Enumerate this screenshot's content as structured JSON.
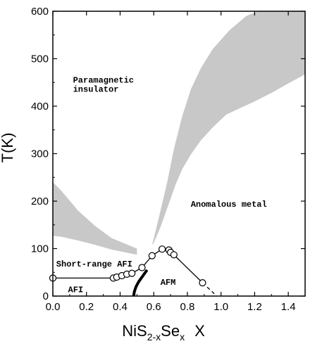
{
  "chart_data": {
    "type": "line",
    "title": "",
    "xlabel": "X",
    "xlabel_compound": {
      "base": "NiS",
      "sub1": "2-x",
      "mid": "Se",
      "sub2": "x"
    },
    "ylabel": "T(K)",
    "xlim": [
      0,
      1.5
    ],
    "ylim": [
      0,
      600
    ],
    "x_ticks": [
      0.0,
      0.2,
      0.4,
      0.6,
      0.8,
      1.0,
      1.2,
      1.4
    ],
    "x_tick_labels": [
      "0.0",
      "0.2",
      "0.4",
      "0.6",
      "0.8",
      "1.0",
      "1.2",
      "1.4"
    ],
    "y_ticks": [
      0,
      100,
      200,
      300,
      400,
      500,
      600
    ],
    "y_tick_labels": [
      "0",
      "100",
      "200",
      "300",
      "400",
      "500",
      "600"
    ],
    "grid": false,
    "shaded_color": "#c8c8c8",
    "shaded_regions": [
      {
        "name": "left crossover band",
        "polygon": [
          [
            0.0,
            240
          ],
          [
            0.05,
            222
          ],
          [
            0.15,
            180
          ],
          [
            0.25,
            148
          ],
          [
            0.35,
            122
          ],
          [
            0.5,
            100
          ],
          [
            0.5,
            87
          ],
          [
            0.35,
            98
          ],
          [
            0.25,
            108
          ],
          [
            0.15,
            117
          ],
          [
            0.05,
            125
          ],
          [
            0.0,
            127
          ]
        ]
      },
      {
        "name": "right crossover band",
        "polygon": [
          [
            0.59,
            107
          ],
          [
            0.63,
            165
          ],
          [
            0.68,
            240
          ],
          [
            0.72,
            310
          ],
          [
            0.77,
            380
          ],
          [
            0.82,
            435
          ],
          [
            0.88,
            480
          ],
          [
            0.95,
            520
          ],
          [
            1.05,
            560
          ],
          [
            1.15,
            590
          ],
          [
            1.22,
            600
          ],
          [
            1.5,
            600
          ],
          [
            1.5,
            467
          ],
          [
            1.4,
            448
          ],
          [
            1.3,
            428
          ],
          [
            1.2,
            410
          ],
          [
            1.12,
            397
          ],
          [
            1.03,
            382
          ],
          [
            0.95,
            355
          ],
          [
            0.88,
            328
          ],
          [
            0.82,
            298
          ],
          [
            0.77,
            268
          ],
          [
            0.73,
            235
          ],
          [
            0.69,
            195
          ],
          [
            0.64,
            145
          ],
          [
            0.6,
            112
          ]
        ]
      }
    ],
    "series": [
      {
        "style": "open-circle-line",
        "points": [
          [
            0.0,
            38
          ],
          [
            0.36,
            38
          ],
          [
            0.38,
            40
          ],
          [
            0.41,
            43
          ],
          [
            0.44,
            46
          ],
          [
            0.47,
            48
          ],
          [
            0.53,
            60
          ],
          [
            0.59,
            85
          ],
          [
            0.65,
            99
          ],
          [
            0.69,
            97
          ],
          [
            0.7,
            92
          ],
          [
            0.72,
            87
          ],
          [
            0.89,
            28
          ]
        ]
      },
      {
        "style": "thick-line",
        "points": [
          [
            0.48,
            0
          ],
          [
            0.485,
            10
          ],
          [
            0.495,
            20
          ],
          [
            0.51,
            30
          ],
          [
            0.53,
            40
          ],
          [
            0.56,
            55
          ]
        ]
      },
      {
        "style": "dashed-line",
        "points": [
          [
            0.89,
            28
          ],
          [
            0.96,
            5
          ]
        ]
      }
    ],
    "annotations": [
      {
        "lines": [
          "Paramagnetic",
          "insulator"
        ],
        "x": 0.12,
        "y": 450
      },
      {
        "lines": [
          "Anomalous metal"
        ],
        "x": 0.82,
        "y": 188
      },
      {
        "lines": [
          "Short-range AFI"
        ],
        "x": 0.02,
        "y": 62
      },
      {
        "lines": [
          "AFI"
        ],
        "x": 0.09,
        "y": 8
      },
      {
        "lines": [
          "AFM"
        ],
        "x": 0.64,
        "y": 24
      }
    ]
  }
}
